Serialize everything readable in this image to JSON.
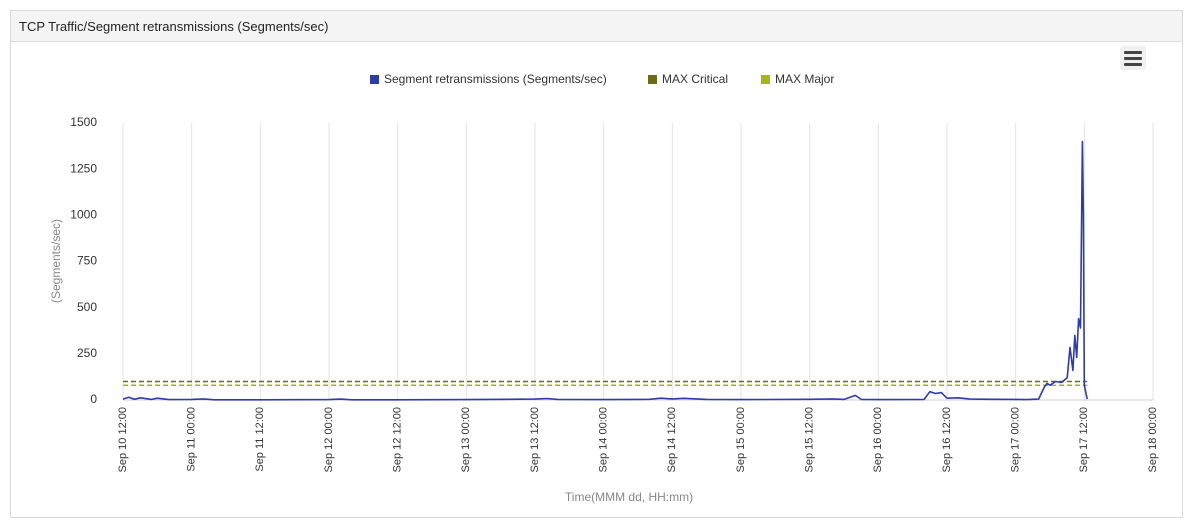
{
  "panel": {
    "title": "TCP Traffic/Segment retransmissions (Segments/sec)"
  },
  "menu": {
    "icon": "hamburger-menu-icon"
  },
  "chart_data": {
    "type": "line",
    "title": "",
    "xlabel": "Time(MMM dd, HH:mm)",
    "ylabel": "(Segments/sec)",
    "ylim": [
      0,
      1500
    ],
    "yticks": [
      0,
      250,
      500,
      750,
      1000,
      1250,
      1500
    ],
    "xlim": [
      "2024-09-10T12:00",
      "2024-09-18T00:00"
    ],
    "xticks": [
      "Sep 10 12:00",
      "Sep 11 00:00",
      "Sep 11 12:00",
      "Sep 12 00:00",
      "Sep 12 12:00",
      "Sep 13 00:00",
      "Sep 13 12:00",
      "Sep 14 00:00",
      "Sep 14 12:00",
      "Sep 15 00:00",
      "Sep 15 12:00",
      "Sep 16 00:00",
      "Sep 16 12:00",
      "Sep 17 00:00",
      "Sep 17 12:00",
      "Sep 18 00:00"
    ],
    "grid": "vertical",
    "legend_position": "top-center",
    "series": [
      {
        "name": "Segment retransmissions (Segments/sec)",
        "color": "#2e3bb0",
        "style": "solid",
        "points": [
          [
            "2024-09-10T12:00",
            5
          ],
          [
            "2024-09-10T13:00",
            15
          ],
          [
            "2024-09-10T14:00",
            4
          ],
          [
            "2024-09-10T15:00",
            12
          ],
          [
            "2024-09-10T17:00",
            3
          ],
          [
            "2024-09-10T18:00",
            10
          ],
          [
            "2024-09-10T20:00",
            2
          ],
          [
            "2024-09-11T00:00",
            3
          ],
          [
            "2024-09-11T02:00",
            6
          ],
          [
            "2024-09-11T04:00",
            1
          ],
          [
            "2024-09-11T12:00",
            1
          ],
          [
            "2024-09-12T00:00",
            2
          ],
          [
            "2024-09-12T02:00",
            5
          ],
          [
            "2024-09-12T04:00",
            1
          ],
          [
            "2024-09-12T12:00",
            1
          ],
          [
            "2024-09-13T00:00",
            2
          ],
          [
            "2024-09-13T12:00",
            5
          ],
          [
            "2024-09-13T14:00",
            8
          ],
          [
            "2024-09-13T16:00",
            3
          ],
          [
            "2024-09-14T00:00",
            2
          ],
          [
            "2024-09-14T08:00",
            4
          ],
          [
            "2024-09-14T10:00",
            10
          ],
          [
            "2024-09-14T12:00",
            6
          ],
          [
            "2024-09-14T14:00",
            9
          ],
          [
            "2024-09-14T18:00",
            3
          ],
          [
            "2024-09-15T00:00",
            2
          ],
          [
            "2024-09-15T12:00",
            4
          ],
          [
            "2024-09-15T16:00",
            6
          ],
          [
            "2024-09-15T18:00",
            3
          ],
          [
            "2024-09-15T20:00",
            25
          ],
          [
            "2024-09-15T21:00",
            3
          ],
          [
            "2024-09-16T00:00",
            2
          ],
          [
            "2024-09-16T08:00",
            3
          ],
          [
            "2024-09-16T09:00",
            45
          ],
          [
            "2024-09-16T10:00",
            35
          ],
          [
            "2024-09-16T11:00",
            40
          ],
          [
            "2024-09-16T12:00",
            10
          ],
          [
            "2024-09-16T14:00",
            12
          ],
          [
            "2024-09-16T16:00",
            5
          ],
          [
            "2024-09-16T20:00",
            4
          ],
          [
            "2024-09-17T00:00",
            3
          ],
          [
            "2024-09-17T02:00",
            2
          ],
          [
            "2024-09-17T04:00",
            5
          ],
          [
            "2024-09-17T05:00",
            70
          ],
          [
            "2024-09-17T05:30",
            90
          ],
          [
            "2024-09-17T06:00",
            80
          ],
          [
            "2024-09-17T07:00",
            100
          ],
          [
            "2024-09-17T08:00",
            95
          ],
          [
            "2024-09-17T09:00",
            120
          ],
          [
            "2024-09-17T09:30",
            285
          ],
          [
            "2024-09-17T10:00",
            160
          ],
          [
            "2024-09-17T10:20",
            350
          ],
          [
            "2024-09-17T10:40",
            230
          ],
          [
            "2024-09-17T11:00",
            440
          ],
          [
            "2024-09-17T11:20",
            390
          ],
          [
            "2024-09-17T11:40",
            1400
          ],
          [
            "2024-09-17T11:50",
            1000
          ],
          [
            "2024-09-17T12:00",
            80
          ],
          [
            "2024-09-17T12:30",
            5
          ]
        ]
      },
      {
        "name": "MAX Critical",
        "color": "#6b6b1a",
        "style": "dashed",
        "points": [
          [
            "2024-09-10T12:00",
            100
          ],
          [
            "2024-09-17T12:30",
            100
          ]
        ]
      },
      {
        "name": "MAX Major",
        "color": "#a8b41e",
        "style": "dashed",
        "points": [
          [
            "2024-09-10T12:00",
            80
          ],
          [
            "2024-09-17T12:30",
            80
          ]
        ]
      }
    ]
  }
}
